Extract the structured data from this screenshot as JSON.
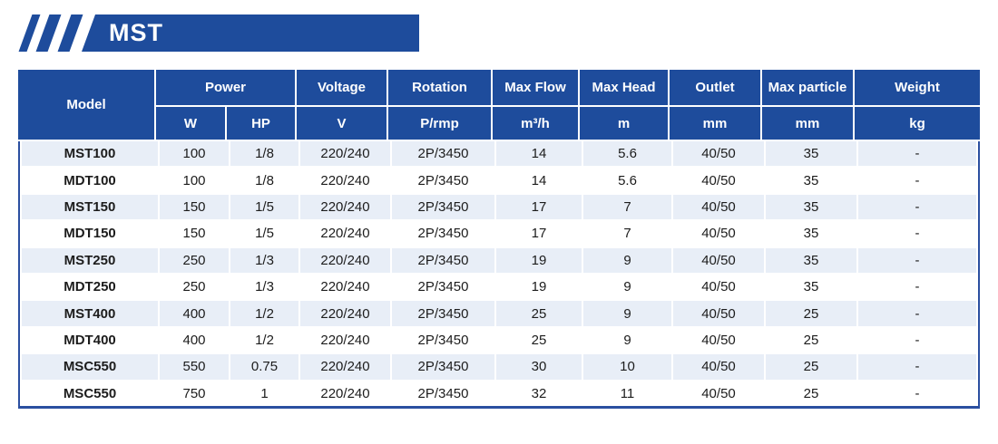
{
  "banner": {
    "title": "MST"
  },
  "table": {
    "header": {
      "model": "Model",
      "power": "Power",
      "power_units": [
        "W",
        "HP"
      ],
      "columns": [
        {
          "label": "Voltage",
          "unit": "V"
        },
        {
          "label": "Rotation",
          "unit": "P/rmp"
        },
        {
          "label": "Max Flow",
          "unit": "m³/h"
        },
        {
          "label": "Max Head",
          "unit": "m"
        },
        {
          "label": "Outlet",
          "unit": "mm"
        },
        {
          "label": "Max particle",
          "unit": "mm"
        },
        {
          "label": "Weight",
          "unit": "kg"
        }
      ]
    },
    "rows": [
      [
        "MST100",
        "100",
        "1/8",
        "220/240",
        "2P/3450",
        "14",
        "5.6",
        "40/50",
        "35",
        "-"
      ],
      [
        "MDT100",
        "100",
        "1/8",
        "220/240",
        "2P/3450",
        "14",
        "5.6",
        "40/50",
        "35",
        "-"
      ],
      [
        "MST150",
        "150",
        "1/5",
        "220/240",
        "2P/3450",
        "17",
        "7",
        "40/50",
        "35",
        "-"
      ],
      [
        "MDT150",
        "150",
        "1/5",
        "220/240",
        "2P/3450",
        "17",
        "7",
        "40/50",
        "35",
        "-"
      ],
      [
        "MST250",
        "250",
        "1/3",
        "220/240",
        "2P/3450",
        "19",
        "9",
        "40/50",
        "35",
        "-"
      ],
      [
        "MDT250",
        "250",
        "1/3",
        "220/240",
        "2P/3450",
        "19",
        "9",
        "40/50",
        "35",
        "-"
      ],
      [
        "MST400",
        "400",
        "1/2",
        "220/240",
        "2P/3450",
        "25",
        "9",
        "40/50",
        "25",
        "-"
      ],
      [
        "MDT400",
        "400",
        "1/2",
        "220/240",
        "2P/3450",
        "25",
        "9",
        "40/50",
        "25",
        "-"
      ],
      [
        "MSC550",
        "550",
        "0.75",
        "220/240",
        "2P/3450",
        "30",
        "10",
        "40/50",
        "25",
        "-"
      ],
      [
        "MSC550",
        "750",
        "1",
        "220/240",
        "2P/3450",
        "32",
        "11",
        "40/50",
        "25",
        "-"
      ]
    ]
  },
  "colors": {
    "primary_blue": "#1E4C9C",
    "border_blue": "#2B4FA0",
    "row_shade": "#E8EEF7",
    "header_text": "#FFFFFF",
    "body_text": "#1C1C1C"
  }
}
